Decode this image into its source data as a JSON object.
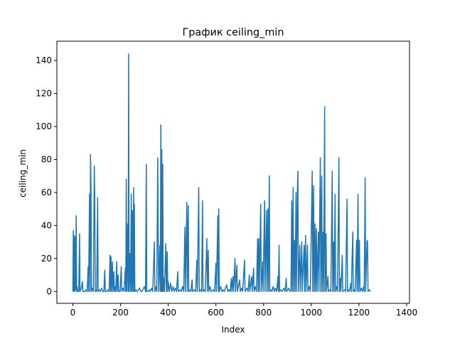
{
  "chart_data": {
    "type": "line",
    "title": "График ceiling_min",
    "xlabel": "Index",
    "ylabel": "ceiling_min",
    "xlim": [
      -67,
      1412
    ],
    "ylim": [
      -7.2,
      151.7
    ],
    "xticks": [
      0,
      200,
      400,
      600,
      800,
      1000,
      1200,
      1400
    ],
    "yticks": [
      0,
      20,
      40,
      60,
      80,
      100,
      120,
      140
    ],
    "grid": false,
    "legend": "none",
    "series": [
      {
        "color": "#1f77b4",
        "points": [
          [
            0,
            0
          ],
          [
            2,
            37
          ],
          [
            4,
            0
          ],
          [
            6,
            34
          ],
          [
            8,
            0
          ],
          [
            10,
            33
          ],
          [
            12,
            1
          ],
          [
            14,
            46
          ],
          [
            16,
            0
          ],
          [
            18,
            3
          ],
          [
            20,
            0
          ],
          [
            25,
            0
          ],
          [
            28,
            35
          ],
          [
            30,
            0
          ],
          [
            36,
            2
          ],
          [
            40,
            6
          ],
          [
            42,
            0
          ],
          [
            50,
            0
          ],
          [
            55,
            1
          ],
          [
            60,
            0
          ],
          [
            64,
            15
          ],
          [
            66,
            0
          ],
          [
            70,
            59
          ],
          [
            72,
            0
          ],
          [
            74,
            83
          ],
          [
            76,
            65
          ],
          [
            78,
            0
          ],
          [
            82,
            2
          ],
          [
            86,
            0
          ],
          [
            90,
            76
          ],
          [
            92,
            57
          ],
          [
            94,
            0
          ],
          [
            98,
            1
          ],
          [
            100,
            0
          ],
          [
            104,
            57
          ],
          [
            106,
            0
          ],
          [
            110,
            1
          ],
          [
            115,
            0
          ],
          [
            120,
            2
          ],
          [
            125,
            0
          ],
          [
            130,
            0
          ],
          [
            134,
            13
          ],
          [
            136,
            0
          ],
          [
            142,
            0
          ],
          [
            148,
            1
          ],
          [
            152,
            0
          ],
          [
            156,
            22
          ],
          [
            158,
            0
          ],
          [
            160,
            21
          ],
          [
            162,
            0
          ],
          [
            166,
            18
          ],
          [
            168,
            0
          ],
          [
            172,
            12
          ],
          [
            174,
            0
          ],
          [
            178,
            3
          ],
          [
            180,
            0
          ],
          [
            184,
            18
          ],
          [
            186,
            0
          ],
          [
            190,
            10
          ],
          [
            192,
            0
          ],
          [
            198,
            0
          ],
          [
            203,
            15
          ],
          [
            205,
            0
          ],
          [
            210,
            2
          ],
          [
            215,
            0
          ],
          [
            220,
            14
          ],
          [
            222,
            0
          ],
          [
            224,
            68
          ],
          [
            226,
            0
          ],
          [
            230,
            41
          ],
          [
            232,
            0
          ],
          [
            234,
            144
          ],
          [
            236,
            0
          ],
          [
            240,
            23
          ],
          [
            242,
            0
          ],
          [
            245,
            59
          ],
          [
            247,
            0
          ],
          [
            250,
            49
          ],
          [
            252,
            0
          ],
          [
            255,
            63
          ],
          [
            257,
            0
          ],
          [
            258,
            53
          ],
          [
            260,
            0
          ],
          [
            265,
            1
          ],
          [
            270,
            0
          ],
          [
            280,
            2
          ],
          [
            285,
            0
          ],
          [
            290,
            0
          ],
          [
            300,
            3
          ],
          [
            305,
            0
          ],
          [
            308,
            77
          ],
          [
            310,
            0
          ],
          [
            315,
            0
          ],
          [
            320,
            1
          ],
          [
            325,
            0
          ],
          [
            330,
            2
          ],
          [
            335,
            0
          ],
          [
            342,
            30
          ],
          [
            344,
            0
          ],
          [
            350,
            3
          ],
          [
            352,
            0
          ],
          [
            356,
            81
          ],
          [
            358,
            33
          ],
          [
            360,
            0
          ],
          [
            365,
            28
          ],
          [
            367,
            0
          ],
          [
            369,
            101
          ],
          [
            371,
            0
          ],
          [
            373,
            86
          ],
          [
            375,
            0
          ],
          [
            377,
            77
          ],
          [
            379,
            0
          ],
          [
            382,
            8
          ],
          [
            384,
            0
          ],
          [
            390,
            29
          ],
          [
            392,
            0
          ],
          [
            396,
            24
          ],
          [
            398,
            0
          ],
          [
            400,
            6
          ],
          [
            405,
            0
          ],
          [
            410,
            5
          ],
          [
            415,
            0
          ],
          [
            420,
            3
          ],
          [
            425,
            0
          ],
          [
            430,
            2
          ],
          [
            435,
            0
          ],
          [
            440,
            12
          ],
          [
            442,
            0
          ],
          [
            450,
            1
          ],
          [
            455,
            0
          ],
          [
            460,
            3
          ],
          [
            465,
            0
          ],
          [
            470,
            39
          ],
          [
            472,
            0
          ],
          [
            478,
            54
          ],
          [
            480,
            0
          ],
          [
            484,
            52
          ],
          [
            486,
            0
          ],
          [
            490,
            1
          ],
          [
            495,
            0
          ],
          [
            500,
            7
          ],
          [
            502,
            0
          ],
          [
            510,
            1
          ],
          [
            515,
            0
          ],
          [
            520,
            19
          ],
          [
            522,
            0
          ],
          [
            528,
            63
          ],
          [
            530,
            0
          ],
          [
            535,
            1
          ],
          [
            540,
            0
          ],
          [
            544,
            55
          ],
          [
            546,
            0
          ],
          [
            550,
            1
          ],
          [
            555,
            0
          ],
          [
            562,
            32
          ],
          [
            564,
            0
          ],
          [
            568,
            25
          ],
          [
            570,
            0
          ],
          [
            575,
            3
          ],
          [
            580,
            0
          ],
          [
            590,
            1
          ],
          [
            595,
            0
          ],
          [
            600,
            17
          ],
          [
            602,
            0
          ],
          [
            608,
            46
          ],
          [
            610,
            0
          ],
          [
            612,
            50
          ],
          [
            614,
            0
          ],
          [
            620,
            3
          ],
          [
            625,
            0
          ],
          [
            630,
            1
          ],
          [
            635,
            0
          ],
          [
            645,
            4
          ],
          [
            650,
            0
          ],
          [
            655,
            1
          ],
          [
            660,
            0
          ],
          [
            665,
            8
          ],
          [
            667,
            0
          ],
          [
            672,
            9
          ],
          [
            674,
            0
          ],
          [
            680,
            20
          ],
          [
            682,
            0
          ],
          [
            688,
            16
          ],
          [
            690,
            0
          ],
          [
            700,
            7
          ],
          [
            702,
            0
          ],
          [
            708,
            2
          ],
          [
            712,
            0
          ],
          [
            720,
            19
          ],
          [
            722,
            0
          ],
          [
            730,
            2
          ],
          [
            735,
            0
          ],
          [
            740,
            10
          ],
          [
            742,
            0
          ],
          [
            750,
            9
          ],
          [
            752,
            0
          ],
          [
            758,
            14
          ],
          [
            760,
            0
          ],
          [
            766,
            3
          ],
          [
            770,
            0
          ],
          [
            775,
            32
          ],
          [
            777,
            0
          ],
          [
            780,
            32
          ],
          [
            782,
            0
          ],
          [
            788,
            53
          ],
          [
            790,
            0
          ],
          [
            796,
            18
          ],
          [
            798,
            0
          ],
          [
            804,
            55
          ],
          [
            806,
            0
          ],
          [
            812,
            49
          ],
          [
            814,
            0
          ],
          [
            818,
            50
          ],
          [
            820,
            0
          ],
          [
            824,
            70
          ],
          [
            826,
            0
          ],
          [
            830,
            1
          ],
          [
            835,
            0
          ],
          [
            840,
            3
          ],
          [
            845,
            0
          ],
          [
            850,
            2
          ],
          [
            855,
            0
          ],
          [
            860,
            9
          ],
          [
            862,
            0
          ],
          [
            865,
            28
          ],
          [
            867,
            0
          ],
          [
            872,
            1
          ],
          [
            878,
            0
          ],
          [
            885,
            2
          ],
          [
            890,
            0
          ],
          [
            895,
            8
          ],
          [
            897,
            0
          ],
          [
            905,
            2
          ],
          [
            910,
            0
          ],
          [
            915,
            1
          ],
          [
            918,
            55
          ],
          [
            920,
            0
          ],
          [
            924,
            63
          ],
          [
            926,
            0
          ],
          [
            930,
            31
          ],
          [
            932,
            0
          ],
          [
            936,
            60
          ],
          [
            938,
            0
          ],
          [
            942,
            63
          ],
          [
            944,
            73
          ],
          [
            946,
            0
          ],
          [
            952,
            28
          ],
          [
            954,
            0
          ],
          [
            960,
            30
          ],
          [
            962,
            0
          ],
          [
            970,
            28
          ],
          [
            972,
            0
          ],
          [
            976,
            34
          ],
          [
            978,
            0
          ],
          [
            984,
            28
          ],
          [
            986,
            0
          ],
          [
            992,
            3
          ],
          [
            996,
            0
          ],
          [
            1004,
            73
          ],
          [
            1006,
            0
          ],
          [
            1010,
            64
          ],
          [
            1012,
            0
          ],
          [
            1016,
            41
          ],
          [
            1018,
            0
          ],
          [
            1022,
            38
          ],
          [
            1024,
            0
          ],
          [
            1030,
            36
          ],
          [
            1032,
            0
          ],
          [
            1038,
            81
          ],
          [
            1040,
            0
          ],
          [
            1044,
            70
          ],
          [
            1046,
            0
          ],
          [
            1050,
            36
          ],
          [
            1052,
            0
          ],
          [
            1056,
            112
          ],
          [
            1058,
            0
          ],
          [
            1062,
            35
          ],
          [
            1064,
            0
          ],
          [
            1070,
            9
          ],
          [
            1072,
            0
          ],
          [
            1078,
            1
          ],
          [
            1082,
            0
          ],
          [
            1088,
            73
          ],
          [
            1090,
            0
          ],
          [
            1094,
            30
          ],
          [
            1096,
            0
          ],
          [
            1100,
            59
          ],
          [
            1102,
            0
          ],
          [
            1106,
            3
          ],
          [
            1110,
            0
          ],
          [
            1116,
            81
          ],
          [
            1118,
            0
          ],
          [
            1122,
            8
          ],
          [
            1124,
            0
          ],
          [
            1130,
            22
          ],
          [
            1132,
            0
          ],
          [
            1140,
            1
          ],
          [
            1144,
            0
          ],
          [
            1150,
            56
          ],
          [
            1152,
            0
          ],
          [
            1156,
            1
          ],
          [
            1160,
            0
          ],
          [
            1166,
            5
          ],
          [
            1168,
            0
          ],
          [
            1174,
            36
          ],
          [
            1176,
            0
          ],
          [
            1180,
            1
          ],
          [
            1184,
            0
          ],
          [
            1190,
            31
          ],
          [
            1192,
            0
          ],
          [
            1196,
            59
          ],
          [
            1198,
            0
          ],
          [
            1202,
            31
          ],
          [
            1204,
            0
          ],
          [
            1210,
            2
          ],
          [
            1214,
            0
          ],
          [
            1220,
            3
          ],
          [
            1222,
            0
          ],
          [
            1226,
            69
          ],
          [
            1228,
            0
          ],
          [
            1234,
            31
          ],
          [
            1236,
            30
          ],
          [
            1238,
            0
          ],
          [
            1244,
            1
          ],
          [
            1248,
            0
          ]
        ]
      }
    ]
  }
}
